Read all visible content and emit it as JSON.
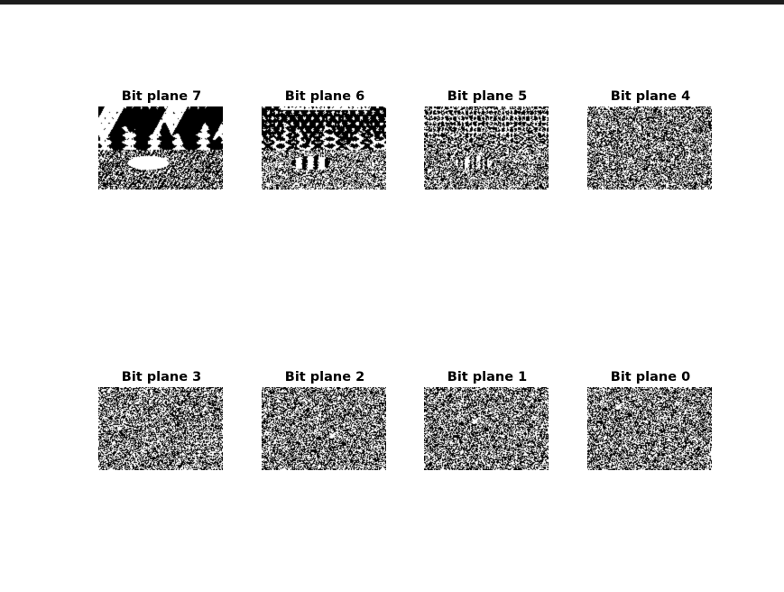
{
  "colors": {
    "window_bar": "#1c1c1c",
    "background": "#ffffff",
    "pixel_on": "#ffffff",
    "pixel_off": "#000000"
  },
  "figure": {
    "rows": 2,
    "cols": 4,
    "subplots": [
      {
        "title": "Bit plane 7",
        "bit": 7
      },
      {
        "title": "Bit plane 6",
        "bit": 6
      },
      {
        "title": "Bit plane 5",
        "bit": 5
      },
      {
        "title": "Bit plane 4",
        "bit": 4
      },
      {
        "title": "Bit plane 3",
        "bit": 3
      },
      {
        "title": "Bit plane 2",
        "bit": 2
      },
      {
        "title": "Bit plane 1",
        "bit": 1
      },
      {
        "title": "Bit plane 0",
        "bit": 0
      }
    ]
  }
}
